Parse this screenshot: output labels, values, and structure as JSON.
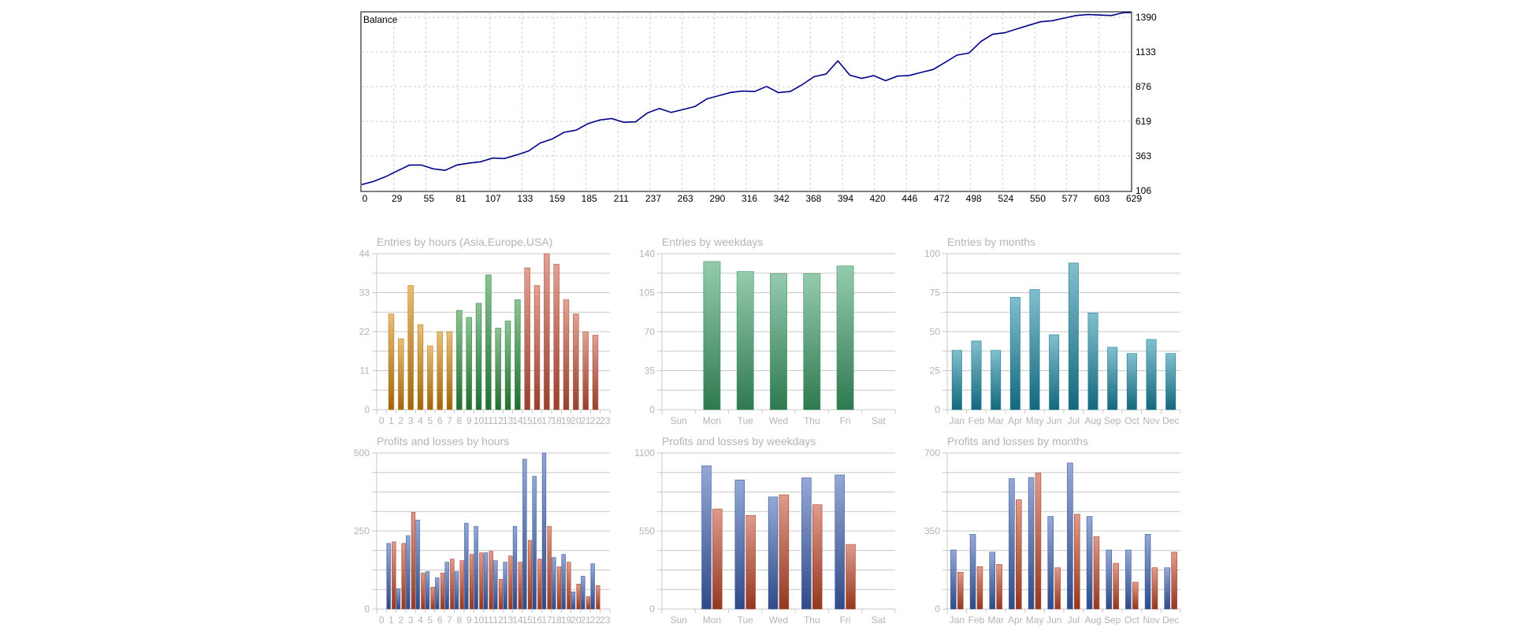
{
  "balance_chart": {
    "title": "Balance",
    "line_color": "#00008b",
    "x_ticks": [
      "0",
      "29",
      "55",
      "81",
      "107",
      "133",
      "159",
      "185",
      "211",
      "237",
      "263",
      "290",
      "316",
      "342",
      "368",
      "394",
      "420",
      "446",
      "472",
      "498",
      "524",
      "550",
      "577",
      "603",
      "629"
    ],
    "y_ticks": [
      "106",
      "363",
      "619",
      "876",
      "1133",
      "1390"
    ]
  },
  "panels": {
    "entries_hours": {
      "title": "Entries by hours (Asia,Europe,USA)",
      "y_ticks": [
        "0",
        "11",
        "22",
        "33",
        "44"
      ]
    },
    "entries_weekdays": {
      "title": "Entries by weekdays",
      "y_ticks": [
        "0",
        "35",
        "70",
        "105",
        "140"
      ]
    },
    "entries_months": {
      "title": "Entries by months",
      "y_ticks": [
        "0",
        "25",
        "50",
        "75",
        "100"
      ]
    },
    "pl_hours": {
      "title": "Profits and losses by hours",
      "y_ticks": [
        "0",
        "250",
        "500"
      ]
    },
    "pl_weekdays": {
      "title": "Profits and losses by weekdays",
      "y_ticks": [
        "0",
        "550",
        "1100"
      ]
    },
    "pl_months": {
      "title": "Profits and losses by months",
      "y_ticks": [
        "0",
        "350",
        "700"
      ]
    }
  },
  "colors": {
    "asia": "#d4880f",
    "europe": "#2e9340",
    "usa": "#c8553d",
    "weekdays": "#3fa16b",
    "months": "#1a8aa6",
    "profit": "#3f63b4",
    "loss": "#c44a2c",
    "grid": "#c8c8c8",
    "label": "#b4b4b4"
  },
  "chart_data": [
    {
      "type": "line",
      "title": "Balance",
      "xlim": [
        0,
        646
      ],
      "ylim": [
        106,
        1390
      ],
      "series": [
        {
          "x": [
            0,
            10,
            20,
            30,
            40,
            50,
            60,
            70,
            80,
            90,
            100,
            110,
            120,
            130,
            140,
            150,
            160,
            170,
            180,
            190,
            200,
            210,
            220,
            230,
            240,
            250,
            260,
            270,
            280,
            290,
            300,
            310,
            320,
            330,
            340,
            350,
            360,
            370,
            380,
            390,
            400,
            410,
            420,
            430,
            440,
            450,
            460,
            470,
            480,
            490,
            500,
            510,
            520,
            530,
            540,
            550,
            560,
            570,
            580,
            590,
            600,
            610,
            620,
            630,
            640,
            646
          ],
          "y": [
            150,
            170,
            200,
            240,
            290,
            300,
            270,
            255,
            280,
            300,
            310,
            330,
            340,
            370,
            400,
            450,
            470,
            520,
            540,
            600,
            620,
            630,
            610,
            600,
            660,
            690,
            670,
            700,
            720,
            770,
            780,
            810,
            820,
            810,
            860,
            820,
            830,
            870,
            920,
            940,
            1040,
            950,
            920,
            940,
            910,
            930,
            930,
            950,
            980,
            1040,
            1090,
            1100,
            1170,
            1230,
            1240,
            1260,
            1300,
            1330,
            1340,
            1350,
            1360,
            1370,
            1370,
            1380,
            1400,
            1390
          ]
        }
      ]
    },
    {
      "type": "bar",
      "title": "Entries by hours (Asia,Europe,USA)",
      "categories": [
        "0",
        "1",
        "2",
        "3",
        "4",
        "5",
        "6",
        "7",
        "8",
        "9",
        "10",
        "11",
        "12",
        "13",
        "14",
        "15",
        "16",
        "17",
        "18",
        "19",
        "20",
        "21",
        "22",
        "23"
      ],
      "ylim": [
        0,
        44
      ],
      "values": [
        0,
        27,
        20,
        35,
        24,
        18,
        22,
        22,
        28,
        26,
        30,
        38,
        23,
        25,
        31,
        40,
        35,
        44,
        41,
        31,
        27,
        22,
        21,
        0
      ]
    },
    {
      "type": "bar",
      "title": "Entries by weekdays",
      "categories": [
        "Sun",
        "Mon",
        "Tue",
        "Wed",
        "Thu",
        "Fri",
        "Sat"
      ],
      "ylim": [
        0,
        140
      ],
      "values": [
        0,
        133,
        124,
        122,
        122,
        129,
        0
      ]
    },
    {
      "type": "bar",
      "title": "Entries by months",
      "categories": [
        "Jan",
        "Feb",
        "Mar",
        "Apr",
        "May",
        "Jun",
        "Jul",
        "Aug",
        "Sep",
        "Oct",
        "Nov",
        "Dec"
      ],
      "ylim": [
        0,
        100
      ],
      "values": [
        38,
        44,
        38,
        72,
        77,
        48,
        94,
        62,
        40,
        36,
        45,
        36
      ]
    },
    {
      "type": "bar",
      "title": "Profits and losses by hours",
      "categories": [
        "0",
        "1",
        "2",
        "3",
        "4",
        "5",
        "6",
        "7",
        "8",
        "9",
        "10",
        "11",
        "12",
        "13",
        "14",
        "15",
        "16",
        "17",
        "18",
        "19",
        "20",
        "21",
        "22",
        "23"
      ],
      "ylim": [
        0,
        500
      ],
      "series": [
        {
          "values": [
            0,
            210,
            65,
            235,
            285,
            120,
            100,
            150,
            120,
            275,
            265,
            180,
            155,
            150,
            265,
            480,
            425,
            500,
            165,
            175,
            55,
            105,
            145,
            0
          ]
        },
        {
          "values": [
            0,
            215,
            210,
            310,
            115,
            70,
            115,
            160,
            155,
            175,
            180,
            185,
            95,
            170,
            150,
            220,
            160,
            265,
            135,
            150,
            80,
            40,
            75,
            0
          ]
        }
      ]
    },
    {
      "type": "bar",
      "title": "Profits and losses by weekdays",
      "categories": [
        "Sun",
        "Mon",
        "Tue",
        "Wed",
        "Thu",
        "Fri",
        "Sat"
      ],
      "ylim": [
        0,
        1100
      ],
      "series": [
        {
          "values": [
            0,
            1010,
            910,
            790,
            925,
            945,
            0
          ]
        },
        {
          "values": [
            0,
            705,
            660,
            805,
            735,
            455,
            0
          ]
        }
      ]
    },
    {
      "type": "bar",
      "title": "Profits and losses by months",
      "categories": [
        "Jan",
        "Feb",
        "Mar",
        "Apr",
        "May",
        "Jun",
        "Jul",
        "Aug",
        "Sep",
        "Oct",
        "Nov",
        "Dec"
      ],
      "ylim": [
        0,
        700
      ],
      "series": [
        {
          "values": [
            265,
            335,
            255,
            585,
            590,
            415,
            655,
            415,
            265,
            265,
            335,
            185
          ]
        },
        {
          "values": [
            165,
            190,
            200,
            490,
            610,
            185,
            425,
            325,
            205,
            120,
            185,
            255
          ]
        }
      ]
    }
  ]
}
